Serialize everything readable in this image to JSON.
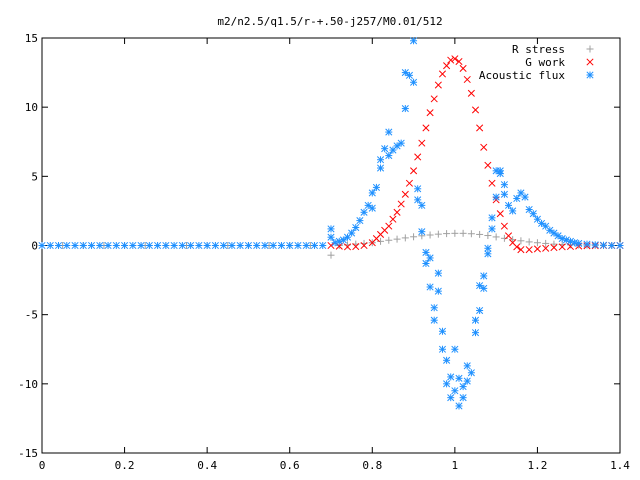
{
  "chart_data": {
    "type": "scatter",
    "title": "m2/n2.5/q1.5/r-+.50-j257/M0.01/512",
    "xlabel": "",
    "ylabel": "",
    "xlim": [
      0,
      1.4
    ],
    "ylim": [
      -15,
      15
    ],
    "xticks": [
      0,
      0.2,
      0.4,
      0.6,
      0.8,
      1.0,
      1.2,
      1.4
    ],
    "xtick_labels": [
      "0",
      "0.2",
      "0.4",
      "0.6",
      "0.8",
      "1",
      "1.2",
      "1.4"
    ],
    "yticks": [
      -15,
      -10,
      -5,
      0,
      5,
      10,
      15
    ],
    "ytick_labels": [
      "-15",
      "-10",
      "-5",
      "0",
      "5",
      "10",
      "15"
    ],
    "grid": false,
    "legend_position": "top-right",
    "series": [
      {
        "name": "R stress",
        "marker": "plus",
        "color": "#a0a0a0",
        "points": [
          [
            0.0,
            0.0
          ],
          [
            0.05,
            0.0
          ],
          [
            0.1,
            0.0
          ],
          [
            0.15,
            0.0
          ],
          [
            0.2,
            0.0
          ],
          [
            0.25,
            0.0
          ],
          [
            0.3,
            0.0
          ],
          [
            0.35,
            0.0
          ],
          [
            0.4,
            0.0
          ],
          [
            0.45,
            0.0
          ],
          [
            0.5,
            0.0
          ],
          [
            0.55,
            0.0
          ],
          [
            0.6,
            0.0
          ],
          [
            0.65,
            0.0
          ],
          [
            0.7,
            -0.7
          ],
          [
            0.72,
            0.0
          ],
          [
            0.74,
            0.05
          ],
          [
            0.76,
            0.1
          ],
          [
            0.78,
            0.15
          ],
          [
            0.8,
            0.2
          ],
          [
            0.82,
            0.3
          ],
          [
            0.84,
            0.38
          ],
          [
            0.86,
            0.46
          ],
          [
            0.88,
            0.55
          ],
          [
            0.9,
            0.63
          ],
          [
            0.92,
            0.7
          ],
          [
            0.94,
            0.76
          ],
          [
            0.96,
            0.82
          ],
          [
            0.98,
            0.86
          ],
          [
            1.0,
            0.88
          ],
          [
            1.02,
            0.88
          ],
          [
            1.04,
            0.85
          ],
          [
            1.06,
            0.8
          ],
          [
            1.08,
            0.72
          ],
          [
            1.1,
            0.62
          ],
          [
            1.12,
            0.52
          ],
          [
            1.14,
            0.42
          ],
          [
            1.16,
            0.34
          ],
          [
            1.18,
            0.26
          ],
          [
            1.2,
            0.2
          ],
          [
            1.22,
            0.15
          ],
          [
            1.24,
            0.1
          ],
          [
            1.26,
            0.07
          ],
          [
            1.28,
            0.05
          ],
          [
            1.3,
            0.03
          ],
          [
            1.32,
            0.02
          ],
          [
            1.34,
            0.01
          ],
          [
            1.36,
            0.0
          ],
          [
            1.38,
            0.0
          ],
          [
            1.4,
            0.0
          ]
        ]
      },
      {
        "name": "G work",
        "marker": "cross",
        "color": "#ff0000",
        "points": [
          [
            0.7,
            0.0
          ],
          [
            0.72,
            -0.05
          ],
          [
            0.74,
            -0.1
          ],
          [
            0.76,
            -0.08
          ],
          [
            0.78,
            0.0
          ],
          [
            0.8,
            0.2
          ],
          [
            0.81,
            0.5
          ],
          [
            0.82,
            0.8
          ],
          [
            0.83,
            1.1
          ],
          [
            0.84,
            1.4
          ],
          [
            0.85,
            1.9
          ],
          [
            0.86,
            2.4
          ],
          [
            0.87,
            3.0
          ],
          [
            0.88,
            3.7
          ],
          [
            0.89,
            4.5
          ],
          [
            0.9,
            5.4
          ],
          [
            0.91,
            6.4
          ],
          [
            0.92,
            7.4
          ],
          [
            0.93,
            8.5
          ],
          [
            0.94,
            9.6
          ],
          [
            0.95,
            10.6
          ],
          [
            0.96,
            11.6
          ],
          [
            0.97,
            12.4
          ],
          [
            0.98,
            13.0
          ],
          [
            0.99,
            13.4
          ],
          [
            1.0,
            13.5
          ],
          [
            1.01,
            13.3
          ],
          [
            1.02,
            12.8
          ],
          [
            1.03,
            12.0
          ],
          [
            1.04,
            11.0
          ],
          [
            1.05,
            9.8
          ],
          [
            1.06,
            8.5
          ],
          [
            1.07,
            7.1
          ],
          [
            1.08,
            5.8
          ],
          [
            1.09,
            4.5
          ],
          [
            1.1,
            3.3
          ],
          [
            1.11,
            2.3
          ],
          [
            1.12,
            1.4
          ],
          [
            1.13,
            0.7
          ],
          [
            1.14,
            0.2
          ],
          [
            1.15,
            -0.1
          ],
          [
            1.16,
            -0.3
          ],
          [
            1.18,
            -0.3
          ],
          [
            1.2,
            -0.25
          ],
          [
            1.22,
            -0.2
          ],
          [
            1.24,
            -0.15
          ],
          [
            1.26,
            -0.1
          ],
          [
            1.28,
            -0.07
          ],
          [
            1.3,
            -0.04
          ],
          [
            1.32,
            -0.02
          ],
          [
            1.34,
            -0.01
          ],
          [
            1.36,
            0.0
          ],
          [
            1.38,
            0.0
          ],
          [
            1.4,
            0.0
          ]
        ]
      },
      {
        "name": "Acoustic flux",
        "marker": "star",
        "color": "#1e90ff",
        "points": [
          [
            0.0,
            0.0
          ],
          [
            0.02,
            0.0
          ],
          [
            0.04,
            0.0
          ],
          [
            0.06,
            0.0
          ],
          [
            0.08,
            0.0
          ],
          [
            0.1,
            0.0
          ],
          [
            0.12,
            0.0
          ],
          [
            0.14,
            0.0
          ],
          [
            0.16,
            0.0
          ],
          [
            0.18,
            0.0
          ],
          [
            0.2,
            0.0
          ],
          [
            0.22,
            0.0
          ],
          [
            0.24,
            0.0
          ],
          [
            0.26,
            0.0
          ],
          [
            0.28,
            0.0
          ],
          [
            0.3,
            0.0
          ],
          [
            0.32,
            0.0
          ],
          [
            0.34,
            0.0
          ],
          [
            0.36,
            0.0
          ],
          [
            0.38,
            0.0
          ],
          [
            0.4,
            0.0
          ],
          [
            0.42,
            0.0
          ],
          [
            0.44,
            0.0
          ],
          [
            0.46,
            0.0
          ],
          [
            0.48,
            0.0
          ],
          [
            0.5,
            0.0
          ],
          [
            0.52,
            0.0
          ],
          [
            0.54,
            0.0
          ],
          [
            0.56,
            0.0
          ],
          [
            0.58,
            0.0
          ],
          [
            0.6,
            0.0
          ],
          [
            0.62,
            0.0
          ],
          [
            0.64,
            0.0
          ],
          [
            0.66,
            0.0
          ],
          [
            0.68,
            0.0
          ],
          [
            0.7,
            1.2
          ],
          [
            0.7,
            0.6
          ],
          [
            0.71,
            0.2
          ],
          [
            0.72,
            0.3
          ],
          [
            0.73,
            0.4
          ],
          [
            0.74,
            0.6
          ],
          [
            0.75,
            0.9
          ],
          [
            0.76,
            1.3
          ],
          [
            0.77,
            1.8
          ],
          [
            0.78,
            2.4
          ],
          [
            0.79,
            2.9
          ],
          [
            0.8,
            2.7
          ],
          [
            0.8,
            3.8
          ],
          [
            0.81,
            4.2
          ],
          [
            0.82,
            5.6
          ],
          [
            0.82,
            6.2
          ],
          [
            0.83,
            7.0
          ],
          [
            0.84,
            8.2
          ],
          [
            0.84,
            6.5
          ],
          [
            0.85,
            6.9
          ],
          [
            0.86,
            7.2
          ],
          [
            0.87,
            7.4
          ],
          [
            0.88,
            9.9
          ],
          [
            0.88,
            12.5
          ],
          [
            0.89,
            12.3
          ],
          [
            0.9,
            11.8
          ],
          [
            0.9,
            14.8
          ],
          [
            0.91,
            4.1
          ],
          [
            0.91,
            3.3
          ],
          [
            0.92,
            2.9
          ],
          [
            0.92,
            1.0
          ],
          [
            0.93,
            -0.5
          ],
          [
            0.93,
            -1.3
          ],
          [
            0.94,
            -0.9
          ],
          [
            0.94,
            -3.0
          ],
          [
            0.95,
            -4.5
          ],
          [
            0.95,
            -5.4
          ],
          [
            0.96,
            -3.3
          ],
          [
            0.96,
            -2.0
          ],
          [
            0.97,
            -6.2
          ],
          [
            0.97,
            -7.5
          ],
          [
            0.98,
            -8.3
          ],
          [
            0.98,
            -10.0
          ],
          [
            0.99,
            -11.0
          ],
          [
            0.99,
            -9.5
          ],
          [
            1.0,
            -10.5
          ],
          [
            1.0,
            -7.5
          ],
          [
            1.01,
            -11.6
          ],
          [
            1.01,
            -9.6
          ],
          [
            1.02,
            -10.2
          ],
          [
            1.02,
            -11.0
          ],
          [
            1.03,
            -9.8
          ],
          [
            1.03,
            -8.7
          ],
          [
            1.04,
            -9.2
          ],
          [
            1.05,
            -6.3
          ],
          [
            1.05,
            -5.4
          ],
          [
            1.06,
            -4.7
          ],
          [
            1.06,
            -2.9
          ],
          [
            1.07,
            -2.2
          ],
          [
            1.07,
            -3.1
          ],
          [
            1.08,
            -0.6
          ],
          [
            1.08,
            -0.2
          ],
          [
            1.09,
            1.2
          ],
          [
            1.09,
            2.0
          ],
          [
            1.1,
            3.5
          ],
          [
            1.1,
            5.4
          ],
          [
            1.11,
            5.2
          ],
          [
            1.11,
            5.4
          ],
          [
            1.12,
            4.4
          ],
          [
            1.12,
            3.7
          ],
          [
            1.13,
            2.9
          ],
          [
            1.14,
            2.5
          ],
          [
            1.15,
            3.4
          ],
          [
            1.16,
            3.8
          ],
          [
            1.17,
            3.5
          ],
          [
            1.18,
            2.6
          ],
          [
            1.19,
            2.3
          ],
          [
            1.2,
            1.9
          ],
          [
            1.21,
            1.6
          ],
          [
            1.22,
            1.4
          ],
          [
            1.23,
            1.1
          ],
          [
            1.24,
            0.9
          ],
          [
            1.25,
            0.7
          ],
          [
            1.26,
            0.5
          ],
          [
            1.27,
            0.4
          ],
          [
            1.28,
            0.3
          ],
          [
            1.29,
            0.2
          ],
          [
            1.3,
            0.15
          ],
          [
            1.32,
            0.1
          ],
          [
            1.34,
            0.05
          ],
          [
            1.36,
            0.02
          ],
          [
            1.38,
            0.0
          ],
          [
            1.4,
            0.0
          ]
        ]
      }
    ]
  }
}
